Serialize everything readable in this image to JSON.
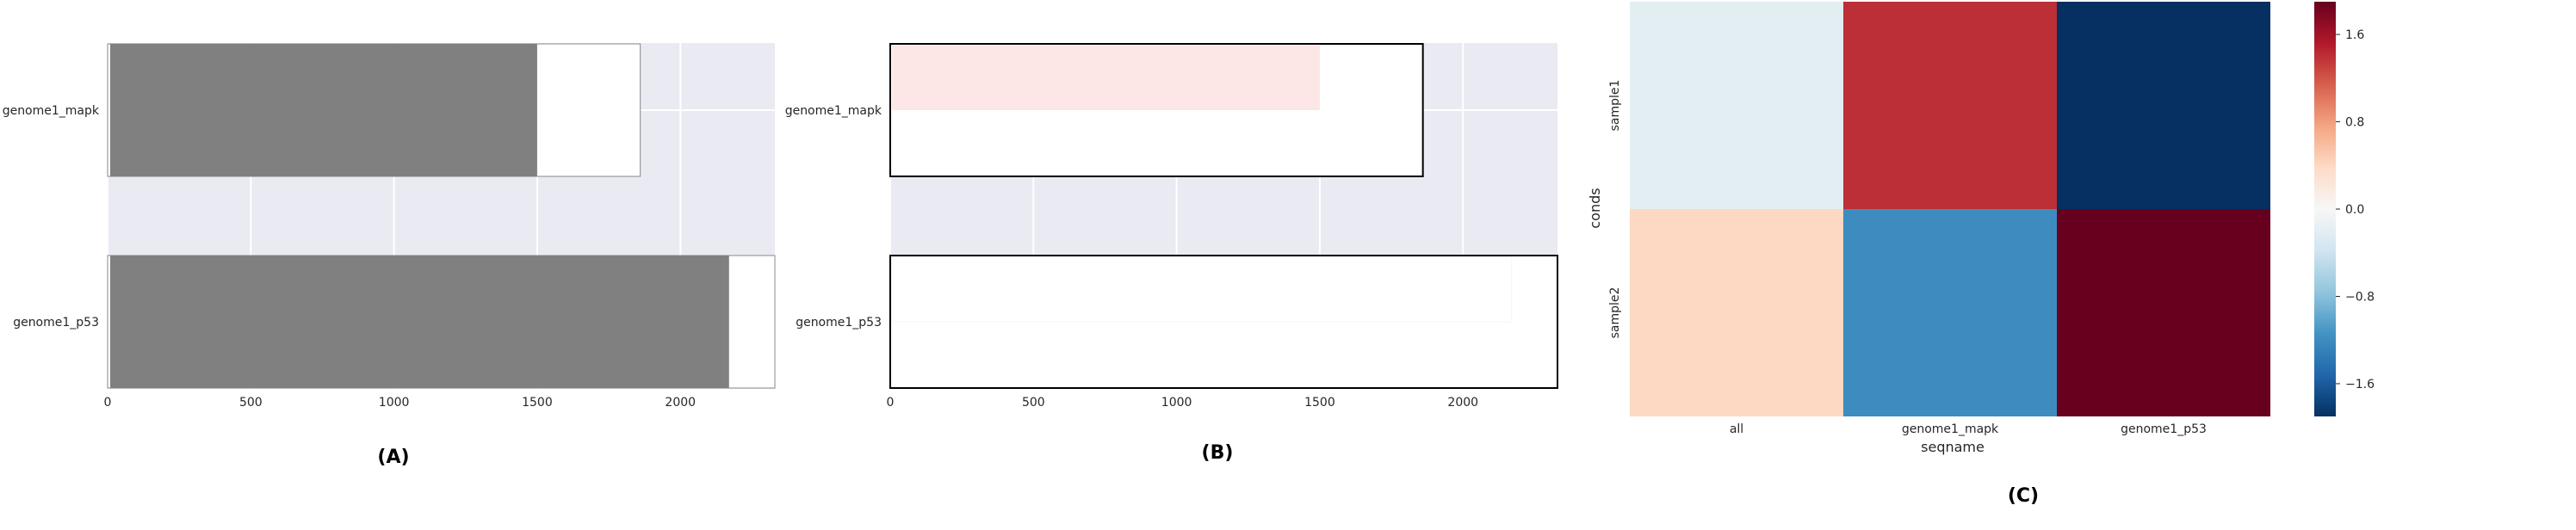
{
  "chart_data": [
    {
      "type": "bar",
      "orientation": "horizontal",
      "panel_label": "(A)",
      "categories": [
        "genome1_mapk",
        "genome1_p53"
      ],
      "series": [
        {
          "values": [
            1860,
            2330
          ],
          "color": "#ffffff"
        },
        {
          "values": [
            1500,
            2170
          ],
          "color": "#808080"
        }
      ],
      "xticks": [
        "0",
        "500",
        "1000",
        "1500",
        "2000"
      ],
      "xlim": [
        0,
        2330
      ],
      "grid": true,
      "background": "#eaeaf2"
    },
    {
      "type": "bar",
      "orientation": "horizontal",
      "panel_label": "(B)",
      "categories": [
        "genome1_mapk",
        "genome1_p53"
      ],
      "series": [
        {
          "values": [
            1860,
            2330
          ],
          "color": "#ffffff"
        },
        {
          "values": [
            1500,
            2170
          ],
          "colors": [
            "#fde6e6",
            "#ffffff"
          ]
        }
      ],
      "xticks": [
        "0",
        "500",
        "1000",
        "1500",
        "2000"
      ],
      "xlim": [
        0,
        2330
      ],
      "grid": true,
      "background": "#eaeaf2"
    },
    {
      "type": "heatmap",
      "panel_label": "(C)",
      "xlabel": "seqname",
      "ylabel": "conds",
      "x": [
        "all",
        "genome1_mapk",
        "genome1_p53"
      ],
      "y": [
        "sample1",
        "sample2"
      ],
      "values": [
        [
          -0.2,
          1.4,
          -1.9
        ],
        [
          0.4,
          -1.2,
          1.9
        ]
      ],
      "colorbar": {
        "ticks": [
          "1.6",
          "0.8",
          "0.0",
          "−0.8",
          "−1.6"
        ],
        "vmin": -1.9,
        "vmax": 1.9
      },
      "colormap": "RdBu_r"
    }
  ]
}
